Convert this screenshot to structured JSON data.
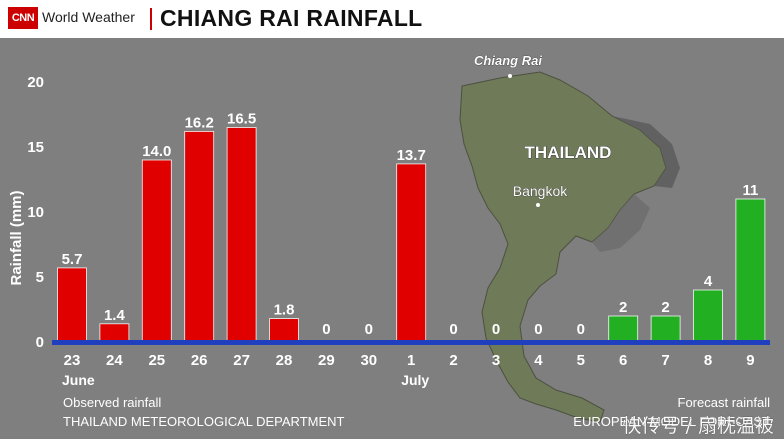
{
  "header": {
    "logo_text": "CNN",
    "network": "World Weather",
    "title": "CHIANG RAI RAINFALL"
  },
  "map": {
    "labels": [
      "Chiang Rai",
      "THAILAND",
      "Bangkok"
    ]
  },
  "footer": {
    "observed_label": "Observed rainfall",
    "observed_source": "THAILAND METEOROLOGICAL DEPARTMENT",
    "forecast_label": "Forecast rainfall",
    "forecast_source": "EUROPEAN MODEL FORECAST",
    "watermark": "快传号 / 扇枕温被"
  },
  "chart_data": {
    "type": "bar",
    "title": "CHIANG RAI RAINFALL",
    "ylabel": "Rainfall (mm)",
    "ylim": [
      0,
      20
    ],
    "yticks": [
      0,
      5,
      10,
      15,
      20
    ],
    "categories": [
      "23",
      "24",
      "25",
      "26",
      "27",
      "28",
      "29",
      "30",
      "1",
      "2",
      "3",
      "4",
      "5",
      "6",
      "7",
      "8",
      "9"
    ],
    "month_labels": [
      {
        "text": "June",
        "at": "23"
      },
      {
        "text": "July",
        "at": "1"
      }
    ],
    "series": [
      {
        "name": "Observed rainfall",
        "color": "#e00000",
        "values": [
          5.7,
          1.4,
          14.0,
          16.2,
          16.5,
          1.8,
          0,
          0,
          13.7,
          0,
          0,
          0,
          0,
          null,
          null,
          null,
          null
        ],
        "labels": [
          "5.7",
          "1.4",
          "14.0",
          "16.2",
          "16.5",
          "1.8",
          "0",
          "0",
          "13.7",
          "0",
          "0",
          "0",
          "0",
          null,
          null,
          null,
          null
        ]
      },
      {
        "name": "Forecast rainfall",
        "color": "#22b022",
        "values": [
          null,
          null,
          null,
          null,
          null,
          null,
          null,
          null,
          null,
          null,
          null,
          null,
          null,
          2,
          2,
          4,
          11
        ],
        "labels": [
          null,
          null,
          null,
          null,
          null,
          null,
          null,
          null,
          null,
          null,
          null,
          null,
          null,
          "2",
          "2",
          "4",
          "11"
        ]
      }
    ],
    "baseline_color": "#1f3fbf",
    "grid": false
  }
}
